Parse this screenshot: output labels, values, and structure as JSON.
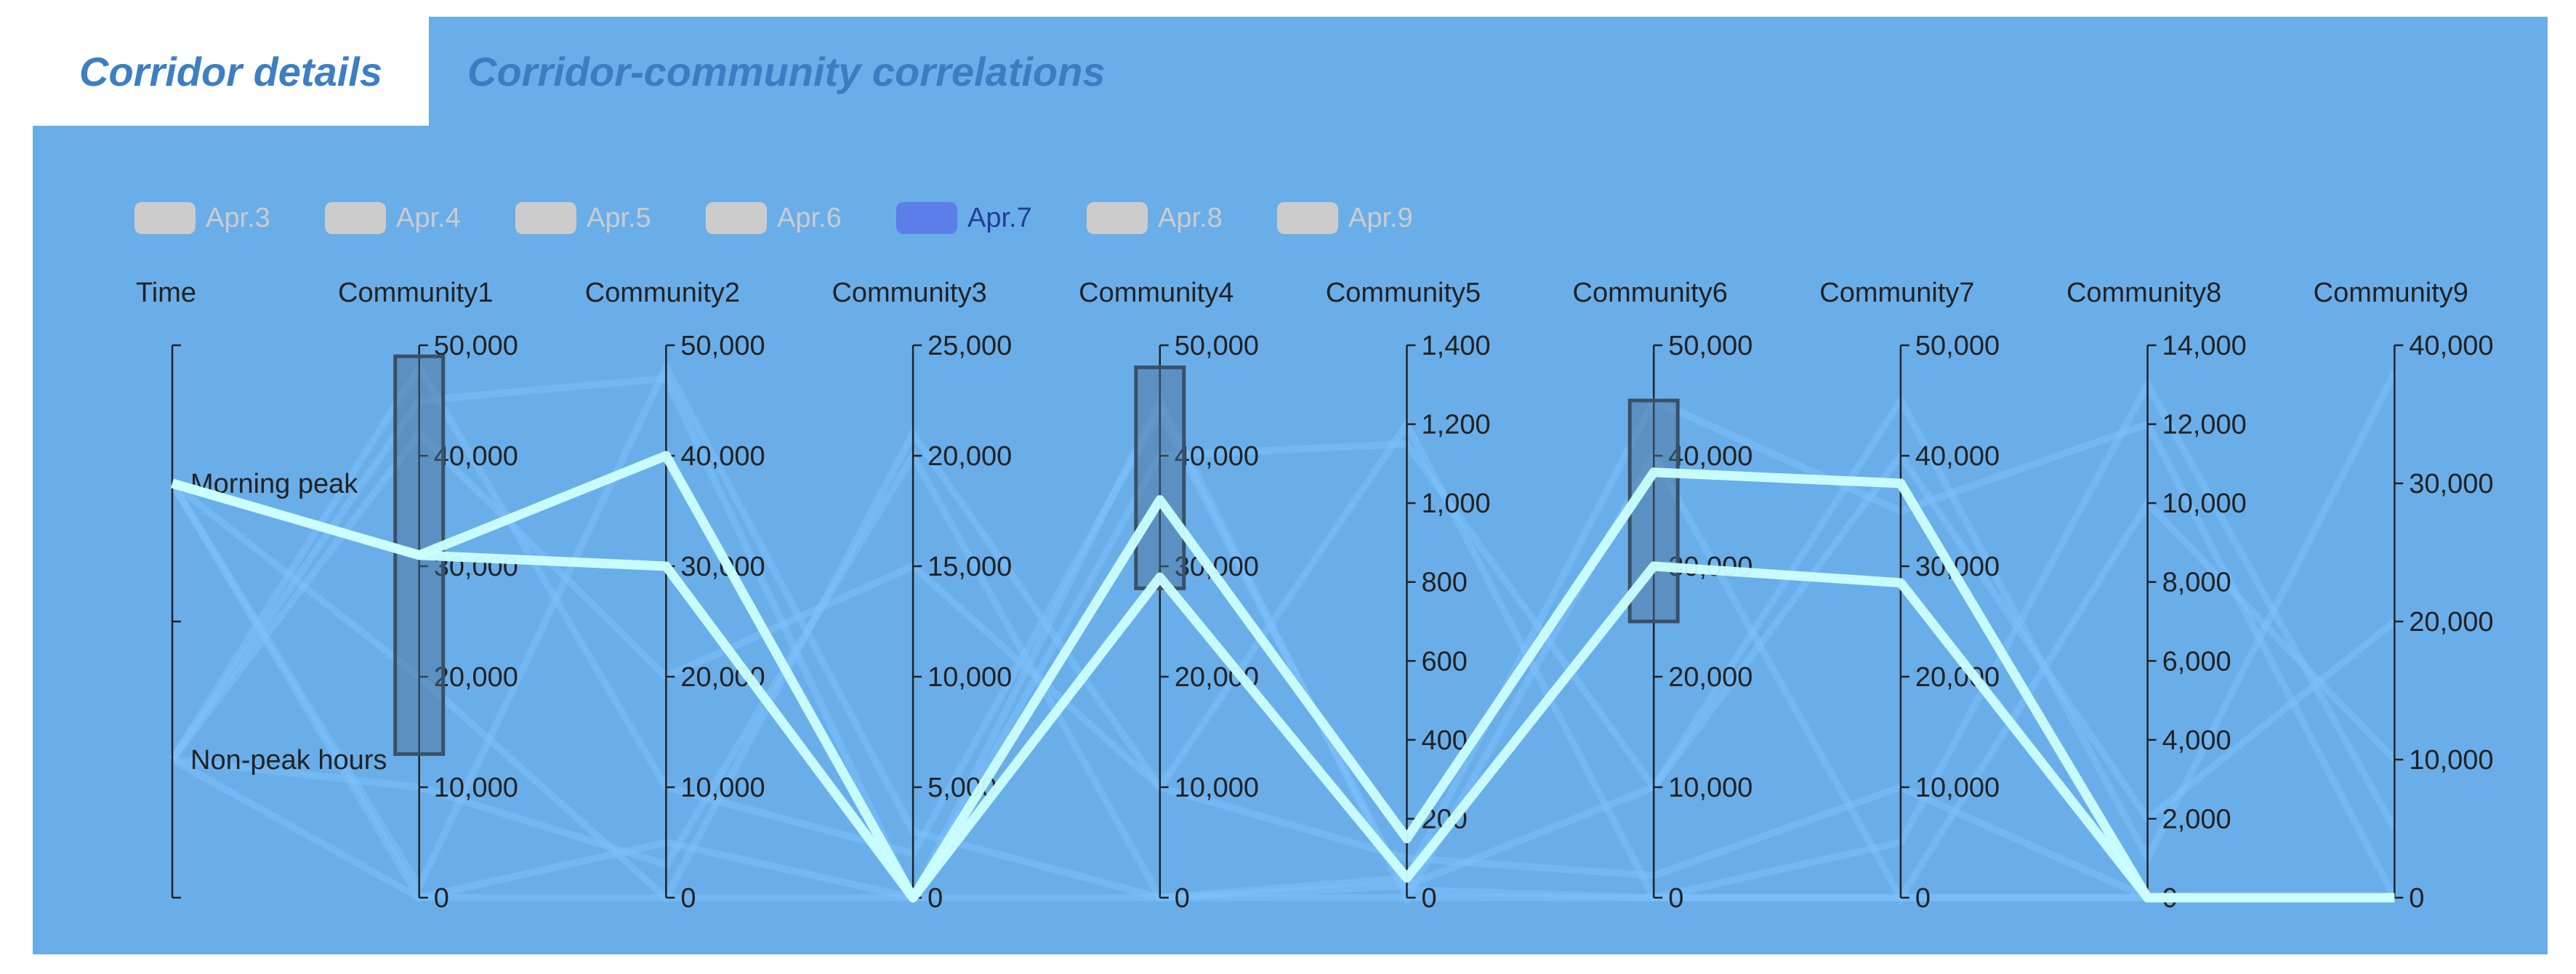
{
  "tabs": [
    {
      "label": "Corridor details",
      "active": true
    },
    {
      "label": "Corridor-community correlations",
      "active": false
    }
  ],
  "colors": {
    "panel_bg": "#6aaee9",
    "highlight_line": "#ccffff",
    "faint_line": "#7fc4ff",
    "legend_inactive": "#cccccc",
    "legend_active": "#5b7ee8",
    "brush_fill": "#4a6f93"
  },
  "chart_data": {
    "type": "parallel",
    "legend": {
      "position": "top-left",
      "items": [
        "Apr.3",
        "Apr.4",
        "Apr.5",
        "Apr.6",
        "Apr.7",
        "Apr.8",
        "Apr.9"
      ],
      "selected": "Apr.7"
    },
    "axes": [
      {
        "name": "Time",
        "type": "category",
        "categories": [
          "Non-peak hours",
          "Morning peak"
        ]
      },
      {
        "name": "Community1",
        "min": 0,
        "max": 50000,
        "ticks": [
          "0",
          "10,000",
          "20,000",
          "30,000",
          "40,000",
          "50,000"
        ],
        "brush": [
          13000,
          49000
        ]
      },
      {
        "name": "Community2",
        "min": 0,
        "max": 50000,
        "ticks": [
          "0",
          "10,000",
          "20,000",
          "30,000",
          "40,000",
          "50,000"
        ]
      },
      {
        "name": "Community3",
        "min": 0,
        "max": 25000,
        "ticks": [
          "0",
          "5,000",
          "10,000",
          "15,000",
          "20,000",
          "25,000"
        ]
      },
      {
        "name": "Community4",
        "min": 0,
        "max": 50000,
        "ticks": [
          "0",
          "10,000",
          "20,000",
          "30,000",
          "40,000",
          "50,000"
        ],
        "brush": [
          28000,
          48000
        ]
      },
      {
        "name": "Community5",
        "min": 0,
        "max": 1400,
        "ticks": [
          "0",
          "200",
          "400",
          "600",
          "800",
          "1,000",
          "1,200",
          "1,400"
        ]
      },
      {
        "name": "Community6",
        "min": 0,
        "max": 50000,
        "ticks": [
          "0",
          "10,000",
          "20,000",
          "30,000",
          "40,000",
          "50,000"
        ],
        "brush": [
          25000,
          45000
        ]
      },
      {
        "name": "Community7",
        "min": 0,
        "max": 50000,
        "ticks": [
          "0",
          "10,000",
          "20,000",
          "30,000",
          "40,000",
          "50,000"
        ]
      },
      {
        "name": "Community8",
        "min": 0,
        "max": 14000,
        "ticks": [
          "0",
          "2,000",
          "4,000",
          "6,000",
          "8,000",
          "10,000",
          "12,000",
          "14,000"
        ]
      },
      {
        "name": "Community9",
        "min": 0,
        "max": 40000,
        "ticks": [
          "0",
          "10,000",
          "20,000",
          "30,000",
          "40,000"
        ]
      }
    ],
    "highlighted_series": [
      {
        "values": [
          "Morning peak",
          31000,
          40000,
          0,
          36000,
          150,
          38500,
          37500,
          0,
          0
        ]
      },
      {
        "values": [
          "Morning peak",
          31000,
          30000,
          0,
          29000,
          50,
          30000,
          28500,
          0,
          0
        ]
      }
    ],
    "faded_series": [
      {
        "values": [
          "Non-peak hours",
          45000,
          47000,
          0,
          40000,
          1150,
          10000,
          45000,
          1000,
          38000
        ]
      },
      {
        "values": [
          "Non-peak hours",
          10000,
          3000,
          20000,
          0,
          50,
          45000,
          35000,
          12000,
          0
        ]
      },
      {
        "values": [
          "Morning peak",
          0,
          5000,
          0,
          45000,
          0,
          40000,
          0,
          10000,
          10000
        ]
      },
      {
        "values": [
          "Morning peak",
          20000,
          0,
          21000,
          10000,
          100,
          2000,
          10000,
          0,
          0
        ]
      },
      {
        "values": [
          "Non-peak hours",
          48000,
          10000,
          2000,
          44000,
          20,
          0,
          0,
          0,
          0
        ]
      },
      {
        "values": [
          "Non-peak hours",
          0,
          0,
          0,
          0,
          0,
          0,
          0,
          0,
          0
        ]
      },
      {
        "values": [
          "Morning peak",
          1000,
          48000,
          3000,
          0,
          30,
          10000,
          40000,
          2000,
          20000
        ]
      },
      {
        "values": [
          "Non-peak hours",
          42000,
          20000,
          15000,
          10000,
          1200,
          0,
          5000,
          13000,
          5000
        ]
      }
    ]
  }
}
